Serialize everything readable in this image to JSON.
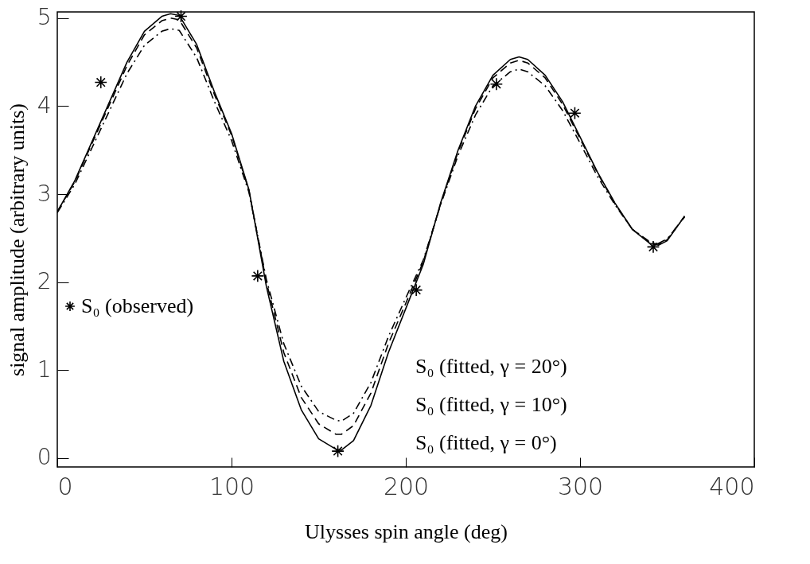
{
  "chart_data": {
    "type": "line",
    "xlabel": "Ulysses spin angle (deg)",
    "ylabel": "signal amplitude (arbitrary units)",
    "xlim": [
      0,
      400
    ],
    "xticks": [
      0,
      100,
      200,
      300,
      400
    ],
    "ylim": [
      -0.1,
      5.07
    ],
    "yticks": [
      0,
      1,
      2,
      3,
      4,
      5
    ],
    "grid": false,
    "legend": "bottom",
    "series": [
      {
        "name": "S₀ (observed)",
        "type": "scatter",
        "marker": "cross",
        "color": "#000000",
        "x": [
          25,
          71,
          115,
          161,
          206,
          252,
          297,
          342
        ],
        "values": [
          4.27,
          5.02,
          2.07,
          0.08,
          1.91,
          4.25,
          3.92,
          2.4
        ]
      },
      {
        "name": "S₀ (fitted, γ = 20°)",
        "line_style": "dashdot",
        "color": "#000000",
        "x": [
          0,
          10,
          20,
          30,
          40,
          50,
          60,
          65,
          70,
          80,
          90,
          100,
          110,
          120,
          130,
          140,
          150,
          160,
          163,
          170,
          180,
          190,
          200,
          210,
          220,
          230,
          240,
          250,
          260,
          265,
          270,
          280,
          290,
          300,
          310,
          320,
          330,
          340,
          345,
          350,
          360
        ],
        "values": [
          2.79,
          3.11,
          3.53,
          3.95,
          4.37,
          4.69,
          4.85,
          4.88,
          4.86,
          4.55,
          4.06,
          3.61,
          3.02,
          2.03,
          1.3,
          0.82,
          0.53,
          0.43,
          0.42,
          0.51,
          0.86,
          1.38,
          1.82,
          2.25,
          2.88,
          3.44,
          3.9,
          4.23,
          4.39,
          4.42,
          4.39,
          4.23,
          3.95,
          3.58,
          3.2,
          2.88,
          2.6,
          2.46,
          2.44,
          2.49,
          2.74
        ]
      },
      {
        "name": "S₀ (fitted, γ = 10°)",
        "line_style": "dashed",
        "color": "#000000",
        "x": [
          0,
          10,
          20,
          30,
          40,
          50,
          60,
          65,
          70,
          80,
          90,
          100,
          110,
          120,
          130,
          140,
          150,
          160,
          163,
          170,
          180,
          190,
          200,
          210,
          220,
          230,
          240,
          250,
          260,
          265,
          270,
          280,
          290,
          300,
          310,
          320,
          330,
          340,
          345,
          350,
          360
        ],
        "values": [
          2.8,
          3.14,
          3.58,
          4.02,
          4.46,
          4.81,
          4.97,
          5.0,
          4.98,
          4.66,
          4.14,
          3.67,
          3.04,
          2.0,
          1.2,
          0.69,
          0.39,
          0.27,
          0.27,
          0.37,
          0.74,
          1.3,
          1.76,
          2.23,
          2.89,
          3.48,
          3.97,
          4.32,
          4.49,
          4.52,
          4.49,
          4.32,
          4.02,
          3.63,
          3.24,
          2.89,
          2.6,
          2.45,
          2.43,
          2.48,
          2.75
        ]
      },
      {
        "name": "S₀ (fitted, γ = 0°)",
        "line_style": "solid",
        "color": "#000000",
        "x": [
          0,
          10,
          20,
          30,
          40,
          50,
          60,
          65,
          70,
          80,
          90,
          100,
          110,
          120,
          130,
          140,
          150,
          160,
          163,
          170,
          180,
          190,
          200,
          210,
          220,
          230,
          240,
          250,
          260,
          265,
          270,
          280,
          290,
          300,
          310,
          320,
          330,
          340,
          345,
          350,
          360
        ],
        "values": [
          2.8,
          3.15,
          3.6,
          4.05,
          4.5,
          4.85,
          5.02,
          5.05,
          5.03,
          4.7,
          4.17,
          3.69,
          3.05,
          1.95,
          1.1,
          0.55,
          0.22,
          0.1,
          0.09,
          0.2,
          0.6,
          1.2,
          1.7,
          2.2,
          2.9,
          3.5,
          4.0,
          4.35,
          4.53,
          4.56,
          4.53,
          4.35,
          4.05,
          3.65,
          3.25,
          2.9,
          2.6,
          2.44,
          2.42,
          2.47,
          2.75
        ]
      }
    ]
  }
}
